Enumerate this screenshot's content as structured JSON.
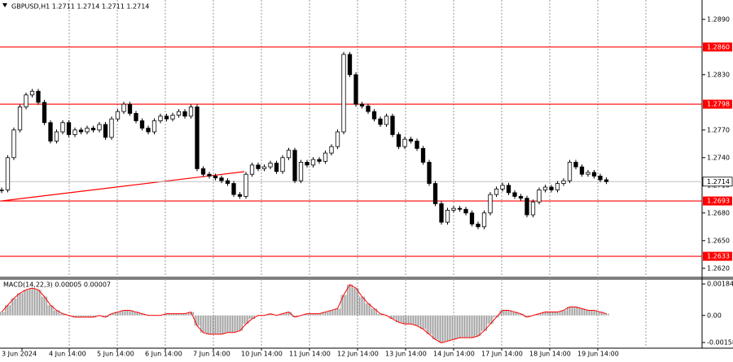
{
  "chart_data": {
    "type": "candlestick",
    "title": "GBPUSD,H1  1.2711 1.2714 1.2711 1.2714",
    "ylim": [
      1.2611,
      1.2911
    ],
    "yticks": [
      {
        "value": 1.289,
        "label": "1.2890"
      },
      {
        "value": 1.283,
        "label": "1.2830"
      },
      {
        "value": 1.277,
        "label": "1.2770"
      },
      {
        "value": 1.274,
        "label": "1.2740"
      },
      {
        "value": 1.271,
        "label": "1.2710"
      },
      {
        "value": 1.268,
        "label": "1.2680"
      },
      {
        "value": 1.265,
        "label": "1.2650"
      },
      {
        "value": 1.262,
        "label": "1.2620"
      }
    ],
    "levels": [
      {
        "value": 1.286,
        "label": "1.2860"
      },
      1.2798,
      1.2693,
      1.2633
    ],
    "level_color": "#ff0000",
    "current_price": 1.2714,
    "x_labels": [
      "3 Jun 2024",
      "4 Jun 14:00",
      "5 Jun 14:00",
      "6 Jun 14:00",
      "7 Jun 14:00",
      "10 Jun 14:00",
      "11 Jun 14:00",
      "12 Jun 14:00",
      "13 Jun 14:00",
      "14 Jun 14:00",
      "17 Jun 14:00",
      "18 Jun 14:00",
      "19 Jun 14:00"
    ],
    "close": [
      1.2705,
      1.274,
      1.277,
      1.2795,
      1.2808,
      1.2812,
      1.28,
      1.2778,
      1.2758,
      1.2768,
      1.2778,
      1.2765,
      1.277,
      1.2768,
      1.2772,
      1.277,
      1.2776,
      1.2762,
      1.2782,
      1.279,
      1.2798,
      1.2788,
      1.278,
      1.2772,
      1.2768,
      1.278,
      1.2785,
      1.2782,
      1.2786,
      1.279,
      1.2785,
      1.2795,
      1.2728,
      1.2722,
      1.272,
      1.2718,
      1.2715,
      1.2712,
      1.27,
      1.2698,
      1.2722,
      1.2732,
      1.2728,
      1.273,
      1.2734,
      1.2725,
      1.274,
      1.2748,
      1.2715,
      1.2735,
      1.2732,
      1.2738,
      1.2736,
      1.2745,
      1.2752,
      1.2768,
      1.2852,
      1.283,
      1.2798,
      1.2796,
      1.279,
      1.2782,
      1.2776,
      1.2785,
      1.2765,
      1.2752,
      1.276,
      1.2758,
      1.275,
      1.2735,
      1.2712,
      1.269,
      1.267,
      1.2683,
      1.2685,
      1.2684,
      1.268,
      1.2668,
      1.2665,
      1.268,
      1.27,
      1.2706,
      1.271,
      1.2702,
      1.2698,
      1.2696,
      1.2678,
      1.2692,
      1.2705,
      1.2708,
      1.2705,
      1.2712,
      1.2715,
      1.2735,
      1.273,
      1.2722,
      1.2724,
      1.272,
      1.2716,
      1.2714
    ],
    "macd": {
      "title": "MACD(14,22,3) 0.00005 0.00007",
      "ylim": [
        -0.00177,
        0.00208
      ],
      "yticks": [
        0.00184,
        {
          "value": 0,
          "label": "0.00"
        },
        -0.00158
      ],
      "line_color": "#ff0000",
      "values": [
        0.0002,
        0.0006,
        0.001,
        0.0013,
        0.0015,
        0.0016,
        0.0015,
        0.0011,
        0.0006,
        0.0003,
        0.0001,
        0,
        -0.0001,
        -0.0001,
        -0.0001,
        -0.0001,
        0,
        -0.0001,
        0.0001,
        0.0002,
        0.0003,
        0.0003,
        0.0002,
        0.0001,
        0,
        0,
        0,
        0.0001,
        0.0001,
        0.0001,
        0.0001,
        0.0002,
        -0.0006,
        -0.001,
        -0.0011,
        -0.0011,
        -0.0011,
        -0.001,
        -0.001,
        -0.0009,
        -0.0005,
        -0.0002,
        0,
        0,
        0.0001,
        0,
        0.0001,
        0.0002,
        -0.0001,
        0,
        0.0001,
        0.0001,
        0.0001,
        0.0002,
        0.0003,
        0.0004,
        0.0012,
        0.0018,
        0.0016,
        0.0011,
        0.0007,
        0.0004,
        0.0001,
        0,
        -0.0002,
        -0.0004,
        -0.0005,
        -0.0005,
        -0.0006,
        -0.0008,
        -0.0011,
        -0.0014,
        -0.0016,
        -0.0015,
        -0.0014,
        -0.0013,
        -0.0013,
        -0.0013,
        -0.0012,
        -0.0009,
        -0.0005,
        -0.0001,
        0.0003,
        0.0003,
        0.0002,
        0.0001,
        -0.0001,
        0,
        0.0001,
        0.0002,
        0.0002,
        0.0002,
        0.0003,
        0.0005,
        0.0005,
        0.0004,
        0.0003,
        0.0003,
        0.0002,
        0.0001
      ]
    }
  }
}
